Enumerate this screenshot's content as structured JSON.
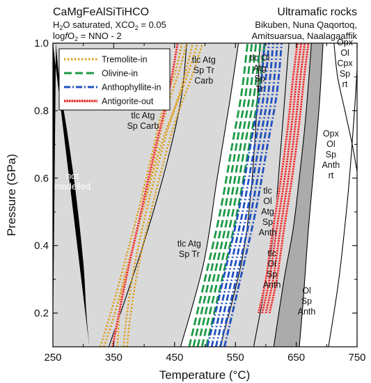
{
  "chart_data": {
    "type": "phase-diagram",
    "title_left": [
      "CaMgFeAlSiTiHCO",
      "H2O saturated, XCO2 = 0.05",
      "logfO2 = NNO - 2"
    ],
    "title_right": [
      "Ultramafic rocks",
      "Bikuben, Nuna Qaqortoq,",
      "Amitsuarsua, Naalagaaffik"
    ],
    "xlabel": "Temperature (°C)",
    "ylabel": "Pressure (GPa)",
    "xlim": [
      250,
      750
    ],
    "ylim": [
      0.1,
      1.0
    ],
    "xticks": [
      250,
      350,
      450,
      550,
      650,
      750
    ],
    "yticks": [
      0.2,
      0.4,
      0.6,
      0.8,
      1.0
    ],
    "ytick_labels": [
      "0.2",
      "0.4",
      "0.6",
      "0.8",
      "1.0"
    ],
    "fields": [
      {
        "name": "not-modelled",
        "lines": [
          "not",
          "modelled"
        ],
        "color": "#000000",
        "label_at": [
          282,
          0.59
        ],
        "text_color": "#ffffff"
      },
      {
        "name": "tlc-atg-sp-carb",
        "lines": [
          "tlc Atg",
          "Sp Carb"
        ],
        "color": "#d9d9d9",
        "label_at": [
          398,
          0.77
        ]
      },
      {
        "name": "tlc-atg-sp-tr-carb",
        "lines": [
          "tlc Atg",
          "Sp Tr",
          "Carb"
        ],
        "color": "#d9d9d9",
        "label_at": [
          498,
          0.92
        ]
      },
      {
        "name": "tlc-atg-sp-tr",
        "lines": [
          "tlc Atg",
          "Sp Tr"
        ],
        "color": "#d9d9d9",
        "label_at": [
          474,
          0.39
        ]
      },
      {
        "name": "tlc-ol-atg-sp-tr",
        "lines": [
          "tlc Ol",
          "Atg",
          "Sp",
          "Tr"
        ],
        "color": "#d9d9d9",
        "label_at": [
          590,
          0.91
        ]
      },
      {
        "name": "tlc-ol-atg-sp-anth",
        "lines": [
          "tlc",
          "Ol",
          "Atg",
          "Sp",
          "Anth"
        ],
        "color": "#d9d9d9",
        "label_at": [
          603,
          0.5
        ]
      },
      {
        "name": "tlc-ol-sp-anth",
        "lines": [
          "tlc",
          "Ol",
          "Sp",
          "Anth"
        ],
        "color": "#d9d9d9",
        "label_at": [
          610,
          0.33
        ]
      },
      {
        "name": "ol-sp-anth",
        "lines": [
          "Ol",
          "Sp",
          "Anth"
        ],
        "color": "#ababab",
        "label_at": [
          667,
          0.235
        ]
      },
      {
        "name": "opx-ol-sp-anth-rt",
        "lines": [
          "Opx",
          "Ol",
          "Sp",
          "Anth",
          "rt"
        ],
        "color": "#ffffff",
        "label_at": [
          707,
          0.67
        ]
      },
      {
        "name": "opx-ol-cpx-sp-rt",
        "lines": [
          "Opx",
          "Ol",
          "Cpx",
          "Sp",
          "rt"
        ],
        "color": "#ffffff",
        "label_at": [
          730,
          0.94
        ]
      }
    ],
    "legend": {
      "position": "top-left",
      "entries": [
        {
          "label": "Tremolite-in",
          "color": "#e0a020",
          "style": "dotted"
        },
        {
          "label": "Olivine-in",
          "color": "#1a9a45",
          "style": "dashed"
        },
        {
          "label": "Anthophyllite-in",
          "color": "#1f4fbf",
          "style": "dashdot"
        },
        {
          "label": "Antigorite-out",
          "color": "#e02020",
          "style": "dotted-pale"
        }
      ]
    },
    "boundaries": [
      {
        "name": "not-modelled-edge",
        "points": [
          [
            310,
            0.1
          ],
          [
            305,
            0.2
          ],
          [
            300,
            0.35
          ],
          [
            288,
            0.55
          ],
          [
            275,
            0.72
          ],
          [
            262,
            0.87
          ],
          [
            255,
            1.0
          ]
        ]
      },
      {
        "name": "carb-out",
        "points": [
          [
            342,
            0.1
          ],
          [
            380,
            0.3
          ],
          [
            415,
            0.5
          ],
          [
            445,
            0.7
          ],
          [
            462,
            0.85
          ],
          [
            470,
            1.0
          ]
        ]
      },
      {
        "name": "carb-out-2",
        "points": [
          [
            460,
            0.1
          ],
          [
            498,
            0.35
          ],
          [
            520,
            0.6
          ],
          [
            540,
            0.82
          ],
          [
            555,
            1.0
          ]
        ]
      },
      {
        "name": "tr-out",
        "points": [
          [
            525,
            0.1
          ],
          [
            560,
            0.35
          ],
          [
            575,
            0.55
          ],
          [
            585,
            0.8
          ],
          [
            590,
            1.0
          ]
        ]
      },
      {
        "name": "atg-out",
        "points": [
          [
            580,
            0.1
          ],
          [
            610,
            0.4
          ],
          [
            625,
            0.7
          ],
          [
            638,
            1.0
          ]
        ]
      },
      {
        "name": "tlc-out",
        "points": [
          [
            613,
            0.1
          ],
          [
            630,
            0.3
          ],
          [
            645,
            0.45
          ],
          [
            655,
            0.6
          ],
          [
            664,
            0.75
          ],
          [
            670,
            0.88
          ],
          [
            675,
            1.0
          ]
        ]
      },
      {
        "name": "anth-in-solid",
        "points": [
          [
            655,
            0.1
          ],
          [
            662,
            0.25
          ],
          [
            670,
            0.45
          ],
          [
            680,
            0.65
          ],
          [
            688,
            0.82
          ],
          [
            694,
            1.0
          ]
        ]
      },
      {
        "name": "anth-out",
        "points": [
          [
            703,
            0.1
          ],
          [
            720,
            0.3
          ],
          [
            735,
            0.55
          ],
          [
            745,
            0.78
          ],
          [
            750,
            0.92
          ]
        ]
      },
      {
        "name": "cpx-in",
        "points": [
          [
            712,
            1.0
          ],
          [
            718,
            0.9
          ],
          [
            730,
            0.8
          ],
          [
            742,
            0.7
          ],
          [
            750,
            0.62
          ]
        ]
      }
    ],
    "tremolite_in": [
      [
        [
          328,
          0.1
        ],
        [
          345,
          0.2
        ],
        [
          368,
          0.35
        ],
        [
          390,
          0.5
        ],
        [
          410,
          0.65
        ],
        [
          430,
          0.8
        ],
        [
          452,
          0.92
        ],
        [
          462,
          1.0
        ]
      ],
      [
        [
          334,
          0.1
        ],
        [
          352,
          0.2
        ],
        [
          374,
          0.35
        ],
        [
          396,
          0.5
        ],
        [
          416,
          0.65
        ],
        [
          436,
          0.8
        ],
        [
          458,
          0.92
        ],
        [
          470,
          1.0
        ]
      ],
      [
        [
          366,
          0.1
        ],
        [
          372,
          0.2
        ],
        [
          385,
          0.35
        ],
        [
          410,
          0.55
        ],
        [
          440,
          0.75
        ],
        [
          470,
          0.9
        ],
        [
          488,
          1.0
        ]
      ],
      [
        [
          372,
          0.1
        ],
        [
          378,
          0.2
        ],
        [
          392,
          0.35
        ],
        [
          418,
          0.55
        ],
        [
          448,
          0.75
        ],
        [
          478,
          0.9
        ],
        [
          496,
          1.0
        ]
      ],
      [
        [
          356,
          0.1
        ],
        [
          362,
          0.25
        ],
        [
          376,
          0.35
        ],
        [
          400,
          0.52
        ],
        [
          428,
          0.7
        ],
        [
          458,
          0.85
        ],
        [
          480,
          1.0
        ]
      ]
    ],
    "olivine_in": [
      [
        [
          474,
          0.1
        ],
        [
          500,
          0.3
        ],
        [
          525,
          0.5
        ],
        [
          545,
          0.7
        ],
        [
          560,
          0.85
        ],
        [
          570,
          1.0
        ]
      ],
      [
        [
          481,
          0.1
        ],
        [
          507,
          0.3
        ],
        [
          532,
          0.5
        ],
        [
          552,
          0.7
        ],
        [
          567,
          0.85
        ],
        [
          577,
          1.0
        ]
      ],
      [
        [
          488,
          0.1
        ],
        [
          514,
          0.3
        ],
        [
          539,
          0.5
        ],
        [
          559,
          0.7
        ],
        [
          574,
          0.85
        ],
        [
          584,
          1.0
        ]
      ],
      [
        [
          495,
          0.1
        ],
        [
          521,
          0.3
        ],
        [
          546,
          0.5
        ],
        [
          566,
          0.7
        ],
        [
          581,
          0.85
        ],
        [
          591,
          1.0
        ]
      ],
      [
        [
          502,
          0.1
        ],
        [
          528,
          0.3
        ],
        [
          553,
          0.5
        ],
        [
          573,
          0.7
        ],
        [
          588,
          0.85
        ],
        [
          598,
          1.0
        ]
      ]
    ],
    "anthophyllite_in": [
      [
        [
          504,
          0.1
        ],
        [
          530,
          0.3
        ],
        [
          555,
          0.5
        ],
        [
          575,
          0.7
        ],
        [
          590,
          0.85
        ],
        [
          598,
          1.0
        ]
      ],
      [
        [
          511,
          0.1
        ],
        [
          537,
          0.3
        ],
        [
          562,
          0.5
        ],
        [
          582,
          0.7
        ],
        [
          597,
          0.85
        ],
        [
          605,
          1.0
        ]
      ],
      [
        [
          518,
          0.1
        ],
        [
          544,
          0.3
        ],
        [
          569,
          0.5
        ],
        [
          589,
          0.7
        ],
        [
          604,
          0.85
        ],
        [
          612,
          1.0
        ]
      ],
      [
        [
          525,
          0.1
        ],
        [
          551,
          0.3
        ],
        [
          576,
          0.5
        ],
        [
          596,
          0.7
        ],
        [
          611,
          0.85
        ],
        [
          619,
          1.0
        ]
      ],
      [
        [
          532,
          0.1
        ],
        [
          558,
          0.3
        ],
        [
          583,
          0.5
        ],
        [
          603,
          0.7
        ],
        [
          618,
          0.85
        ],
        [
          626,
          1.0
        ]
      ]
    ],
    "antigorite_out": [
      [
        [
          348,
          0.1
        ],
        [
          370,
          0.3
        ],
        [
          395,
          0.5
        ],
        [
          420,
          0.7
        ],
        [
          440,
          0.85
        ],
        [
          455,
          1.0
        ]
      ],
      [
        [
          588,
          0.2
        ],
        [
          600,
          0.3
        ],
        [
          612,
          0.45
        ],
        [
          625,
          0.6
        ],
        [
          636,
          0.75
        ],
        [
          645,
          0.9
        ],
        [
          652,
          1.0
        ]
      ],
      [
        [
          594,
          0.2
        ],
        [
          606,
          0.3
        ],
        [
          618,
          0.45
        ],
        [
          631,
          0.6
        ],
        [
          642,
          0.75
        ],
        [
          651,
          0.9
        ],
        [
          658,
          1.0
        ]
      ],
      [
        [
          600,
          0.2
        ],
        [
          612,
          0.3
        ],
        [
          624,
          0.45
        ],
        [
          637,
          0.6
        ],
        [
          648,
          0.75
        ],
        [
          657,
          0.9
        ],
        [
          664,
          1.0
        ]
      ],
      [
        [
          606,
          0.2
        ],
        [
          618,
          0.3
        ],
        [
          630,
          0.45
        ],
        [
          643,
          0.6
        ],
        [
          654,
          0.75
        ],
        [
          663,
          0.9
        ],
        [
          670,
          1.0
        ]
      ]
    ]
  }
}
